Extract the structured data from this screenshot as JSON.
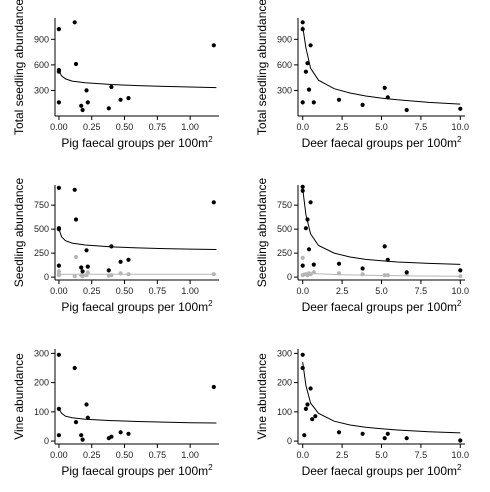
{
  "chart_data": [
    {
      "id": "pig-total",
      "type": "scatter",
      "xlabel": "Pig faecal groups per 100m",
      "xlabel_sup": "2",
      "ylabel": "Total seedling abundance",
      "xlim": [
        -0.03,
        1.22
      ],
      "ylim": [
        0,
        1150
      ],
      "xticks": [
        0,
        0.25,
        0.5,
        0.75,
        1.0
      ],
      "xtick_labels": [
        "0.00",
        "0.25",
        "0.50",
        "0.75",
        "1.00"
      ],
      "yticks": [
        300,
        600,
        900
      ],
      "ytick_labels": [
        "300",
        "600",
        "900"
      ],
      "series": [
        {
          "color": "#000000",
          "points": [
            [
              0.0,
              1020
            ],
            [
              0.0,
              540
            ],
            [
              0.0,
              520
            ],
            [
              0.0,
              160
            ],
            [
              0.12,
              1100
            ],
            [
              0.13,
              610
            ],
            [
              0.17,
              120
            ],
            [
              0.18,
              70
            ],
            [
              0.21,
              300
            ],
            [
              0.22,
              160
            ],
            [
              0.38,
              90
            ],
            [
              0.4,
              340
            ],
            [
              0.47,
              190
            ],
            [
              0.53,
              210
            ],
            [
              1.18,
              830
            ]
          ],
          "curve": [
            [
              0.0,
              530
            ],
            [
              0.02,
              470
            ],
            [
              0.05,
              435
            ],
            [
              0.1,
              410
            ],
            [
              0.2,
              390
            ],
            [
              0.4,
              370
            ],
            [
              0.6,
              357
            ],
            [
              0.8,
              347
            ],
            [
              1.0,
              340
            ],
            [
              1.2,
              333
            ]
          ]
        }
      ]
    },
    {
      "id": "deer-total",
      "type": "scatter",
      "xlabel": "Deer faecal groups per 100m",
      "xlabel_sup": "2",
      "ylabel": "Total seedling abundance",
      "xlim": [
        -0.3,
        10.3
      ],
      "ylim": [
        0,
        1150
      ],
      "xticks": [
        0,
        2.5,
        5.0,
        7.5,
        10.0
      ],
      "xtick_labels": [
        "0.0",
        "2.5",
        "5.0",
        "7.5",
        "10.0"
      ],
      "yticks": [
        300,
        600,
        900
      ],
      "ytick_labels": [
        "300",
        "600",
        "900"
      ],
      "series": [
        {
          "color": "#000000",
          "points": [
            [
              0.0,
              1100
            ],
            [
              0.0,
              1020
            ],
            [
              0.0,
              160
            ],
            [
              0.2,
              520
            ],
            [
              0.3,
              620
            ],
            [
              0.4,
              310
            ],
            [
              0.5,
              830
            ],
            [
              0.7,
              160
            ],
            [
              2.3,
              190
            ],
            [
              3.8,
              130
            ],
            [
              5.2,
              330
            ],
            [
              5.4,
              220
            ],
            [
              6.6,
              70
            ],
            [
              10.0,
              85
            ]
          ],
          "curve": [
            [
              0.0,
              1050
            ],
            [
              0.2,
              800
            ],
            [
              0.5,
              560
            ],
            [
              1.0,
              420
            ],
            [
              2.0,
              320
            ],
            [
              3.0,
              270
            ],
            [
              4.0,
              235
            ],
            [
              5.0,
              210
            ],
            [
              6.0,
              190
            ],
            [
              8.0,
              160
            ],
            [
              10.0,
              140
            ]
          ]
        }
      ]
    },
    {
      "id": "pig-seedling",
      "type": "scatter",
      "xlabel": "Pig faecal groups per 100m",
      "xlabel_sup": "2",
      "ylabel": "Seedling abundance",
      "xlim": [
        -0.03,
        1.22
      ],
      "ylim": [
        -30,
        960
      ],
      "xticks": [
        0,
        0.25,
        0.5,
        0.75,
        1.0
      ],
      "xtick_labels": [
        "0.00",
        "0.25",
        "0.50",
        "0.75",
        "1.00"
      ],
      "yticks": [
        0,
        250,
        500,
        750
      ],
      "ytick_labels": [
        "0",
        "250",
        "500",
        "750"
      ],
      "series": [
        {
          "color": "#000000",
          "points": [
            [
              0.0,
              930
            ],
            [
              0.0,
              510
            ],
            [
              0.0,
              500
            ],
            [
              0.0,
              120
            ],
            [
              0.12,
              910
            ],
            [
              0.13,
              600
            ],
            [
              0.17,
              100
            ],
            [
              0.18,
              60
            ],
            [
              0.21,
              280
            ],
            [
              0.22,
              110
            ],
            [
              0.38,
              70
            ],
            [
              0.4,
              320
            ],
            [
              0.47,
              160
            ],
            [
              0.53,
              180
            ],
            [
              1.18,
              780
            ]
          ],
          "curve": [
            [
              0.0,
              500
            ],
            [
              0.02,
              420
            ],
            [
              0.05,
              380
            ],
            [
              0.1,
              355
            ],
            [
              0.2,
              335
            ],
            [
              0.4,
              315
            ],
            [
              0.6,
              305
            ],
            [
              0.8,
              297
            ],
            [
              1.0,
              292
            ],
            [
              1.2,
              288
            ]
          ]
        },
        {
          "color": "#b5b5b5",
          "points": [
            [
              0.0,
              30
            ],
            [
              0.0,
              20
            ],
            [
              0.0,
              60
            ],
            [
              0.12,
              10
            ],
            [
              0.13,
              210
            ],
            [
              0.17,
              20
            ],
            [
              0.18,
              10
            ],
            [
              0.21,
              20
            ],
            [
              0.22,
              50
            ],
            [
              0.38,
              15
            ],
            [
              0.4,
              20
            ],
            [
              0.47,
              40
            ],
            [
              0.53,
              30
            ],
            [
              1.18,
              30
            ]
          ],
          "curve": [
            [
              0.0,
              30
            ],
            [
              0.3,
              30
            ],
            [
              0.6,
              30
            ],
            [
              0.9,
              30
            ],
            [
              1.2,
              30
            ]
          ]
        }
      ]
    },
    {
      "id": "deer-seedling",
      "type": "scatter",
      "xlabel": "Deer faecal groups per 100m",
      "xlabel_sup": "2",
      "ylabel": "Seedling abundance",
      "xlim": [
        -0.3,
        10.3
      ],
      "ylim": [
        -30,
        960
      ],
      "xticks": [
        0,
        2.5,
        5.0,
        7.5,
        10.0
      ],
      "xtick_labels": [
        "0.0",
        "2.5",
        "5.0",
        "7.5",
        "10.0"
      ],
      "yticks": [
        0,
        250,
        500,
        750
      ],
      "ytick_labels": [
        "0",
        "250",
        "500",
        "750"
      ],
      "series": [
        {
          "color": "#000000",
          "points": [
            [
              0.0,
              940
            ],
            [
              0.0,
              900
            ],
            [
              0.0,
              120
            ],
            [
              0.2,
              510
            ],
            [
              0.3,
              600
            ],
            [
              0.4,
              290
            ],
            [
              0.5,
              780
            ],
            [
              0.7,
              130
            ],
            [
              2.3,
              140
            ],
            [
              3.8,
              90
            ],
            [
              5.2,
              320
            ],
            [
              5.4,
              180
            ],
            [
              6.6,
              50
            ],
            [
              10.0,
              70
            ]
          ],
          "curve": [
            [
              0.0,
              920
            ],
            [
              0.2,
              650
            ],
            [
              0.5,
              450
            ],
            [
              1.0,
              330
            ],
            [
              2.0,
              250
            ],
            [
              3.0,
              210
            ],
            [
              4.0,
              185
            ],
            [
              5.0,
              170
            ],
            [
              6.0,
              158
            ],
            [
              8.0,
              143
            ],
            [
              10.0,
              133
            ]
          ]
        },
        {
          "color": "#b5b5b5",
          "points": [
            [
              0.0,
              200
            ],
            [
              0.0,
              20
            ],
            [
              0.2,
              30
            ],
            [
              0.3,
              20
            ],
            [
              0.4,
              40
            ],
            [
              0.5,
              30
            ],
            [
              0.7,
              50
            ],
            [
              2.3,
              40
            ],
            [
              3.8,
              30
            ],
            [
              5.2,
              20
            ],
            [
              5.4,
              20
            ],
            [
              6.6,
              30
            ],
            [
              10.0,
              10
            ]
          ],
          "curve": [
            [
              0.0,
              40
            ],
            [
              2.5,
              25
            ],
            [
              5.0,
              17
            ],
            [
              7.5,
              12
            ],
            [
              10.0,
              10
            ]
          ]
        }
      ]
    },
    {
      "id": "pig-vine",
      "type": "scatter",
      "xlabel": "Pig faecal groups per 100m",
      "xlabel_sup": "2",
      "ylabel": "Vine abundance",
      "xlim": [
        -0.03,
        1.22
      ],
      "ylim": [
        -10,
        315
      ],
      "xticks": [
        0,
        0.25,
        0.5,
        0.75,
        1.0
      ],
      "xtick_labels": [
        "0.00",
        "0.25",
        "0.50",
        "0.75",
        "1.00"
      ],
      "yticks": [
        0,
        100,
        200,
        300
      ],
      "ytick_labels": [
        "0",
        "100",
        "200",
        "300"
      ],
      "series": [
        {
          "color": "#000000",
          "points": [
            [
              0.0,
              295
            ],
            [
              0.0,
              110
            ],
            [
              0.0,
              20
            ],
            [
              0.12,
              250
            ],
            [
              0.13,
              65
            ],
            [
              0.17,
              20
            ],
            [
              0.18,
              5
            ],
            [
              0.21,
              125
            ],
            [
              0.22,
              80
            ],
            [
              0.38,
              10
            ],
            [
              0.4,
              15
            ],
            [
              0.47,
              30
            ],
            [
              0.53,
              25
            ],
            [
              1.18,
              185
            ]
          ],
          "curve": [
            [
              0.0,
              110
            ],
            [
              0.02,
              95
            ],
            [
              0.05,
              85
            ],
            [
              0.1,
              80
            ],
            [
              0.2,
              75
            ],
            [
              0.4,
              70
            ],
            [
              0.6,
              67
            ],
            [
              0.8,
              65
            ],
            [
              1.0,
              63
            ],
            [
              1.2,
              62
            ]
          ]
        }
      ]
    },
    {
      "id": "deer-vine",
      "type": "scatter",
      "xlabel": "Deer faecal groups per 100m",
      "xlabel_sup": "2",
      "ylabel": "Vine abundance",
      "xlim": [
        -0.3,
        10.3
      ],
      "ylim": [
        -10,
        315
      ],
      "xticks": [
        0,
        2.5,
        5.0,
        7.5,
        10.0
      ],
      "xtick_labels": [
        "0.0",
        "2.5",
        "5.0",
        "7.5",
        "10.0"
      ],
      "yticks": [
        0,
        100,
        200,
        300
      ],
      "ytick_labels": [
        "0",
        "100",
        "200",
        "300"
      ],
      "series": [
        {
          "color": "#000000",
          "points": [
            [
              0.0,
              295
            ],
            [
              0.0,
              250
            ],
            [
              0.1,
              20
            ],
            [
              0.2,
              110
            ],
            [
              0.3,
              125
            ],
            [
              0.5,
              180
            ],
            [
              0.6,
              75
            ],
            [
              0.8,
              85
            ],
            [
              2.3,
              30
            ],
            [
              3.8,
              25
            ],
            [
              5.2,
              10
            ],
            [
              5.4,
              25
            ],
            [
              6.6,
              10
            ],
            [
              10.0,
              2
            ]
          ],
          "curve": [
            [
              0.0,
              270
            ],
            [
              0.2,
              190
            ],
            [
              0.5,
              130
            ],
            [
              1.0,
              95
            ],
            [
              2.0,
              68
            ],
            [
              3.0,
              55
            ],
            [
              4.0,
              47
            ],
            [
              5.0,
              42
            ],
            [
              6.0,
              38
            ],
            [
              8.0,
              32
            ],
            [
              10.0,
              28
            ]
          ]
        }
      ]
    }
  ]
}
